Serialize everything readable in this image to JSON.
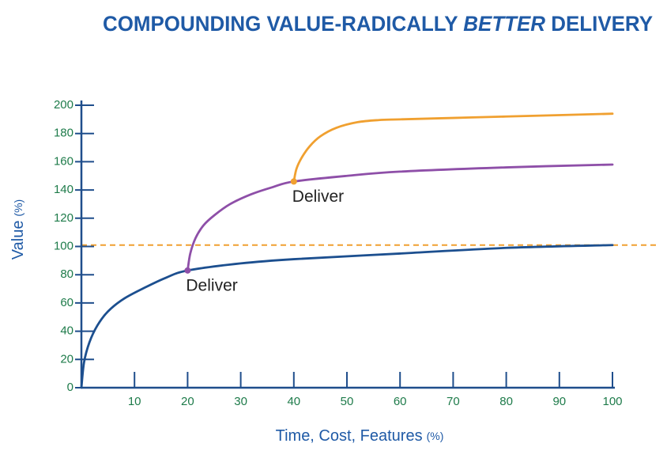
{
  "chart_data": {
    "type": "line",
    "title_parts": [
      "COMPOUNDING VALUE-RADICALLY ",
      "BETTER",
      " DELIVERY"
    ],
    "xlabel": "Time, Cost, Features",
    "xlabel_unit": "(%)",
    "ylabel": "Value",
    "ylabel_unit": "(%)",
    "xlim": [
      0,
      100
    ],
    "ylim": [
      0,
      200
    ],
    "xticks": [
      10,
      20,
      30,
      40,
      50,
      60,
      70,
      80,
      90,
      100
    ],
    "yticks": [
      0,
      20,
      40,
      60,
      80,
      100,
      120,
      140,
      160,
      180,
      200
    ],
    "axis_color": "#1f4e8c",
    "tick_label_color": "#1e7b4a",
    "series": [
      {
        "color": "#1c4f8f",
        "x": [
          0,
          0.5,
          1.5,
          3,
          5,
          8,
          12,
          16,
          20,
          30,
          40,
          60,
          80,
          100
        ],
        "values": [
          0,
          18,
          32,
          44,
          54,
          63,
          71,
          78,
          83,
          88,
          91,
          95,
          99,
          101
        ]
      },
      {
        "color": "#8e4fa8",
        "x": [
          20,
          20.5,
          21.5,
          23,
          25,
          28,
          32,
          36,
          40,
          50,
          60,
          80,
          100
        ],
        "values": [
          83,
          95,
          106,
          115,
          122,
          130,
          137,
          142,
          146,
          150,
          153,
          156,
          158
        ]
      },
      {
        "color": "#f0a030",
        "x": [
          40,
          40.5,
          41.5,
          43,
          45,
          48,
          52,
          56,
          60,
          70,
          80,
          100
        ],
        "values": [
          146,
          155,
          163,
          171,
          178,
          184,
          188,
          189.5,
          190,
          191,
          192,
          194
        ]
      }
    ],
    "reference_lines": [
      {
        "y": 101,
        "color": "#f0a030",
        "dashed": true
      }
    ],
    "annotations": [
      {
        "text": "Deliver",
        "x": 20,
        "y": 83,
        "color": "#8e4fa8"
      },
      {
        "text": "Deliver",
        "x": 40,
        "y": 146,
        "color": "#f0a030"
      }
    ]
  }
}
